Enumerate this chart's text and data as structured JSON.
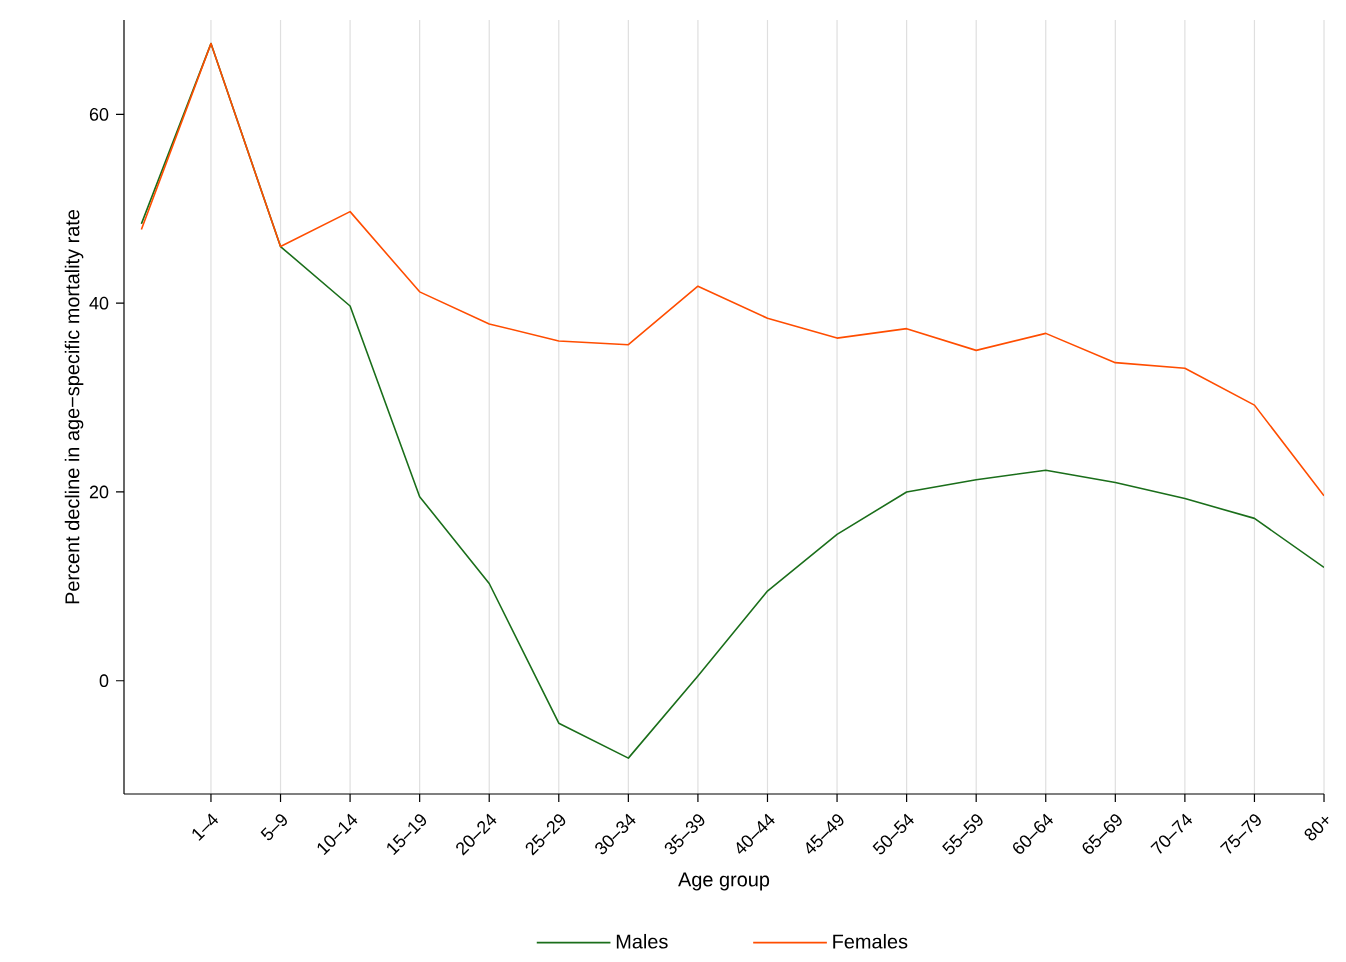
{
  "chart_data": {
    "type": "line",
    "xlabel": "Age group",
    "ylabel": "Percent decline in age−specific mortality rate",
    "categories": [
      null,
      "1–4",
      "5–9",
      "10–14",
      "15–19",
      "20–24",
      "25–29",
      "30–34",
      "35–39",
      "40–44",
      "45–49",
      "50–54",
      "55–59",
      "60–64",
      "65–69",
      "70–74",
      "75–79",
      "80+"
    ],
    "series": [
      {
        "name": "Males",
        "color": "#1a6e1a",
        "values": [
          48.4,
          67.5,
          46,
          39.7,
          19.5,
          10.3,
          -4.5,
          -8.2,
          0.5,
          9.5,
          15.5,
          20,
          21.3,
          22.3,
          21,
          19.3,
          17.2,
          12
        ]
      },
      {
        "name": "Females",
        "color": "#ff4d00",
        "values": [
          47.8,
          67.5,
          46,
          49.7,
          41.2,
          37.8,
          36,
          35.6,
          41.8,
          38.4,
          36.3,
          37.3,
          35,
          36.8,
          33.7,
          33.1,
          29.2,
          19.6
        ]
      }
    ],
    "ylim": [
      -12,
      70
    ],
    "yticks": [
      0,
      20,
      40,
      60
    ],
    "grid": "x",
    "legend": "bottom",
    "marker": "none",
    "line_style": "solid"
  }
}
